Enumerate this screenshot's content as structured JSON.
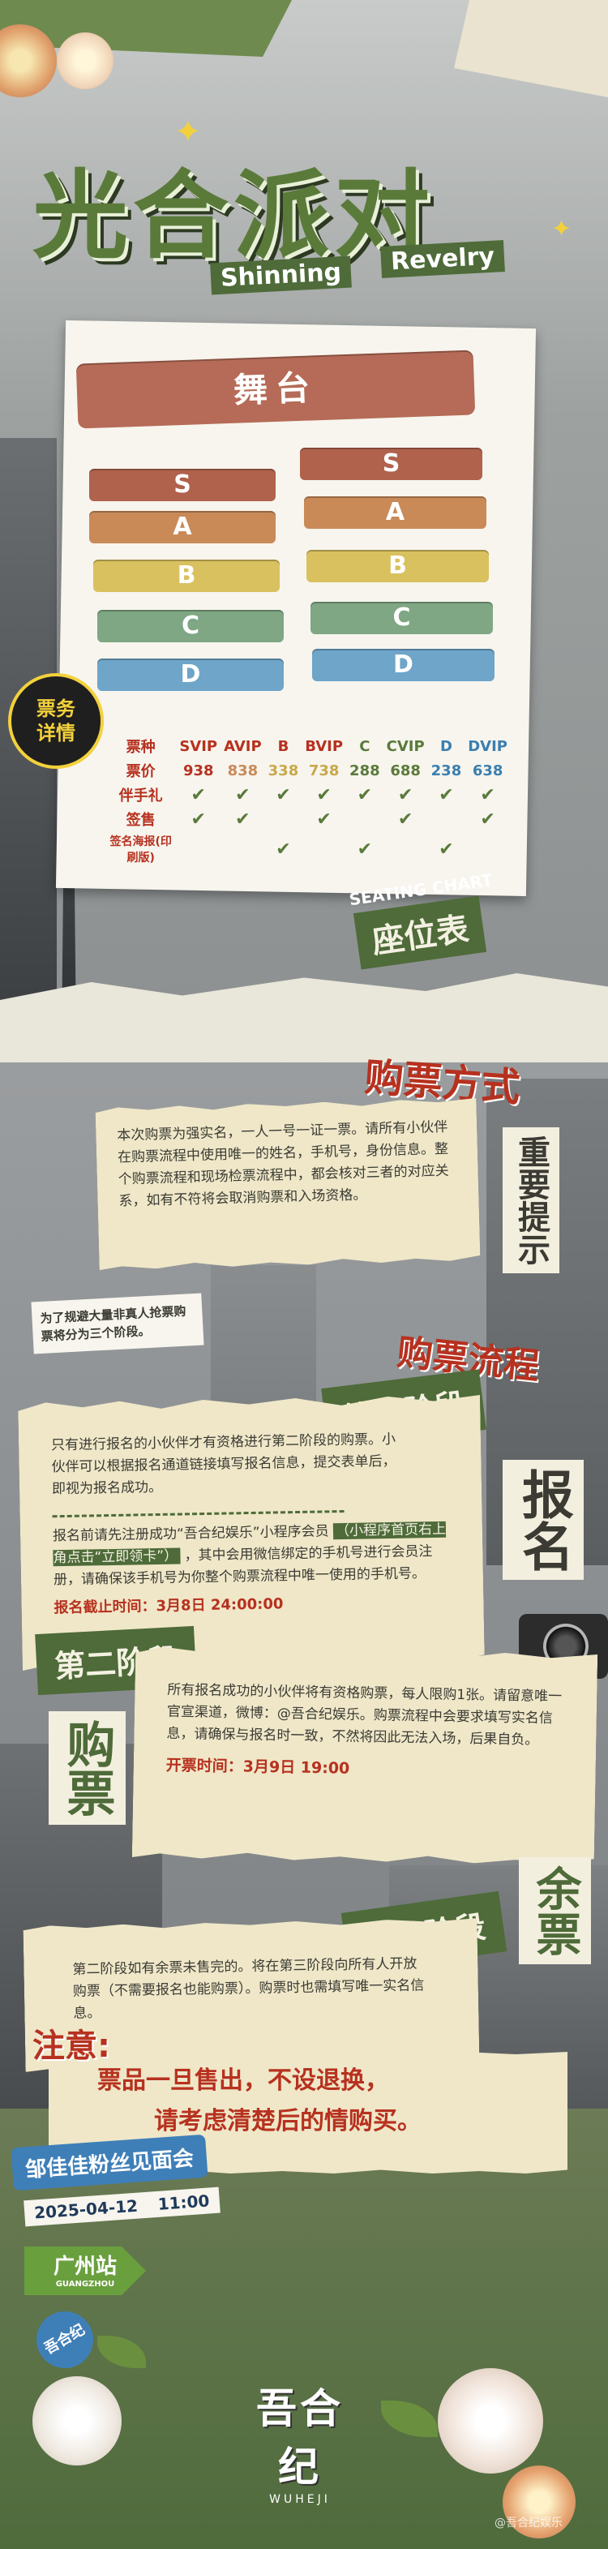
{
  "colors": {
    "green": "#4e6b39",
    "paper": "#f3efdf",
    "red": "#b7311f",
    "accent": "#5a7a3a"
  },
  "title": {
    "main": "光合派对",
    "sub1": "Shinning",
    "sub2": "Revelry"
  },
  "stage": {
    "label": "舞台",
    "left": [
      "S",
      "A",
      "B",
      "C",
      "D"
    ],
    "right": [
      "S",
      "A",
      "B",
      "C",
      "D"
    ]
  },
  "ticket_badge": "票务详情",
  "ticket_badge_line1": "票务",
  "ticket_badge_line2": "详情",
  "ticket_table": {
    "header": [
      "票种",
      "SVIP",
      "AVIP",
      "B",
      "BVIP",
      "C",
      "CVIP",
      "D",
      "DVIP"
    ],
    "prices": [
      "票价",
      "938",
      "838",
      "338",
      "738",
      "288",
      "688",
      "238",
      "638"
    ],
    "rows": [
      {
        "label": "伴手礼",
        "checks": [
          1,
          1,
          1,
          1,
          1,
          1,
          1,
          1
        ]
      },
      {
        "label": "签售",
        "checks": [
          1,
          1,
          0,
          1,
          0,
          1,
          0,
          1
        ]
      },
      {
        "label": "签名海报(印刷版)",
        "checks": [
          0,
          0,
          1,
          0,
          1,
          0,
          1,
          0
        ]
      }
    ],
    "check_mark": "✔"
  },
  "seating": {
    "en": "SEATING CHART",
    "cn": "座位表"
  },
  "purchase": {
    "title": "购票方式",
    "important": "重要提示",
    "intro": "本次购票为强实名，一人一号一证一票。请所有小伙伴在购票流程中使用唯一的姓名，手机号，身份信息。整个购票流程和现场检票流程中，都会核对三者的对应关系，如有不符将会取消购票和入场资格。",
    "note": "为了规避大量非真人抢票购票将分为三个阶段。",
    "process_title": "购票流程"
  },
  "stage1": {
    "label": "第一阶段",
    "side": "报名",
    "text1": "只有进行报名的小伙伴才有资格进行第二阶段的购票。小伙伴可以根据报名通道链接填写报名信息，提交表单后，即视为报名成功。",
    "text2a": "报名前请先注册成功“吾合纪娱乐”小程序会员",
    "text2b": "（小程序首页右上角点击“立即领卡”）",
    "text2c": "，其中会用微信绑定的手机号进行会员注册，请确保该手机号为你整个购票流程中唯一使用的手机号。",
    "deadline": "报名截止时间：3月8日 24:00:00"
  },
  "stage2": {
    "label": "第二阶段",
    "side": "购票",
    "text": "所有报名成功的小伙伴将有资格购票，每人限购1张。请留意唯一官宣渠道，微博：@吾合纪娱乐。购票流程中会要求填写实名信息，请确保与报名时一致，不然将因此无法入场，后果自负。",
    "open_time": "开票时间：3月9日 19:00"
  },
  "stage3": {
    "label": "第三阶段",
    "side": "余票",
    "text": "第二阶段如有余票未售完的。将在第三阶段向所有人开放购票（不需要报名也能购票）。购票时也需填写唯一实名信息。"
  },
  "notice": {
    "title": "注意:",
    "line1": "票品一旦售出，不设退换，",
    "line2": "请考虑清楚后的情购买。"
  },
  "event": {
    "name": "邹佳佳粉丝见面会",
    "date": "2025-04-12",
    "time": "11:00",
    "station": "广州站",
    "station_en": "GUANGZHOU"
  },
  "brand": {
    "cn": "吾合纪",
    "en": "WUHEJI",
    "watermark": "@吾合纪娱乐"
  }
}
